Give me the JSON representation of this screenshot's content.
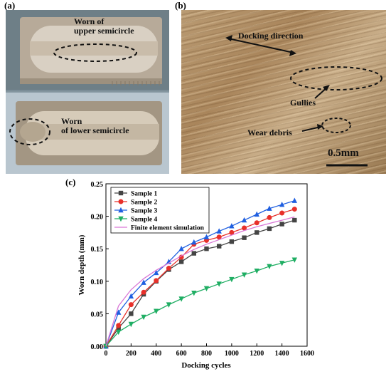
{
  "panels": {
    "a": {
      "label": "(a)",
      "text_upper": [
        "Worn of",
        "upper semicircle"
      ],
      "text_lower": [
        "Worn",
        "of lower semicircle"
      ]
    },
    "b": {
      "label": "(b)",
      "docking_direction": "Docking direction",
      "gullies": "Gullies",
      "wear_debris": "Wear debris",
      "scale": "0.5mm"
    },
    "c": {
      "label": "(c)"
    }
  },
  "colors": {
    "sample1": "#444444",
    "sample2": "#e8302a",
    "sample3": "#1f5fe0",
    "sample4": "#1fae63",
    "fem": "#d977d6"
  },
  "chart_data": {
    "type": "line",
    "title": "",
    "xlabel": "Docking cycles",
    "ylabel": "Worn depth (mm)",
    "xlim": [
      0,
      1600
    ],
    "ylim": [
      0,
      0.25
    ],
    "xticks": [
      "0",
      "200",
      "400",
      "600",
      "800",
      "1000",
      "1200",
      "1400",
      "1600"
    ],
    "yticks": [
      "0.00",
      "0.05",
      "0.10",
      "0.15",
      "0.20",
      "0.25"
    ],
    "legend_position": "top-left",
    "x": [
      0,
      100,
      200,
      300,
      400,
      500,
      600,
      700,
      800,
      900,
      1000,
      1100,
      1200,
      1300,
      1400,
      1500
    ],
    "series": [
      {
        "name": "Sample 1",
        "marker": "square",
        "color": "#444444",
        "values": [
          0,
          0.028,
          0.05,
          0.08,
          0.1,
          0.118,
          0.13,
          0.143,
          0.15,
          0.154,
          0.161,
          0.167,
          0.175,
          0.181,
          0.188,
          0.194
        ]
      },
      {
        "name": "Sample 2",
        "marker": "circle",
        "color": "#e8302a",
        "values": [
          0,
          0.032,
          0.064,
          0.083,
          0.101,
          0.12,
          0.137,
          0.157,
          0.163,
          0.168,
          0.175,
          0.182,
          0.19,
          0.198,
          0.205,
          0.211
        ]
      },
      {
        "name": "Sample 3",
        "marker": "triangle-up",
        "color": "#1f5fe0",
        "values": [
          0,
          0.052,
          0.077,
          0.098,
          0.113,
          0.13,
          0.15,
          0.16,
          0.168,
          0.177,
          0.185,
          0.194,
          0.203,
          0.212,
          0.218,
          0.224
        ]
      },
      {
        "name": "Sample 4",
        "marker": "triangle-down",
        "color": "#1fae63",
        "values": [
          0,
          0.022,
          0.034,
          0.045,
          0.054,
          0.064,
          0.073,
          0.082,
          0.089,
          0.096,
          0.103,
          0.11,
          0.116,
          0.123,
          0.128,
          0.133
        ]
      },
      {
        "name": "Finite element simulation",
        "marker": "none",
        "color": "#d977d6",
        "values": [
          0,
          0.062,
          0.087,
          0.104,
          0.117,
          0.128,
          0.139,
          0.149,
          0.157,
          0.164,
          0.171,
          0.178,
          0.184,
          0.189,
          0.194,
          0.199
        ]
      }
    ]
  }
}
